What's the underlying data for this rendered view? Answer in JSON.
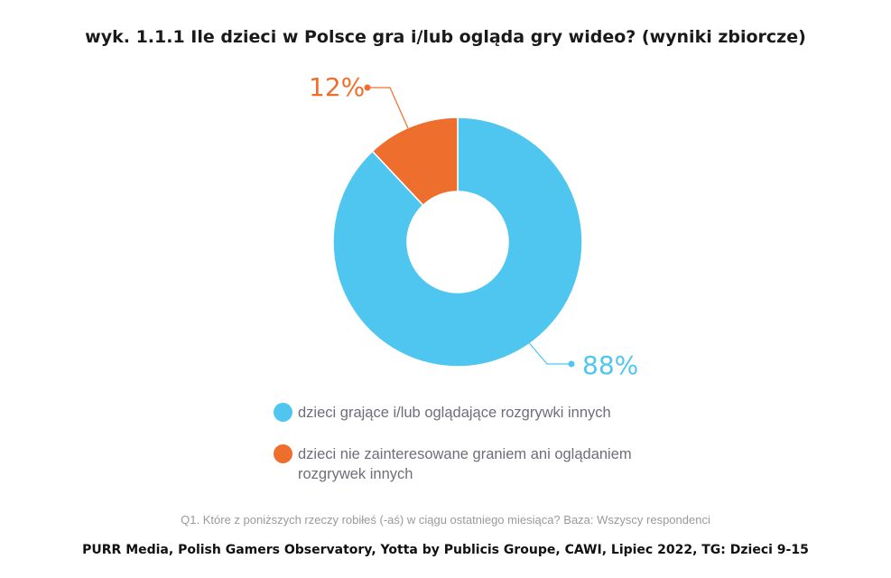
{
  "chart_data": {
    "type": "pie",
    "variant": "donut",
    "title": "wyk. 1.1.1 Ile dzieci w Polsce gra i/lub ogląda gry wideo? (wyniki zbiorcze)",
    "categories": [
      "dzieci grające i/lub oglądające rozgrywki innych",
      "dzieci nie zainteresowane graniem ani oglądaniem rozgrywek innych"
    ],
    "values": [
      88,
      12
    ],
    "data_labels": [
      "88%",
      "12%"
    ],
    "colors": [
      "#4FC6F0",
      "#EE6F2D"
    ],
    "legend_placement": "bottom",
    "note": "Q1. Które z poniższych rzeczy robiłeś (-aś) w ciągu ostatniego miesiąca? Baza: Wszyscy respondenci",
    "source": "PURR Media, Polish Gamers Observatory, Yotta by Publicis Groupe, CAWI, Lipiec 2022, TG: Dzieci 9-15"
  }
}
